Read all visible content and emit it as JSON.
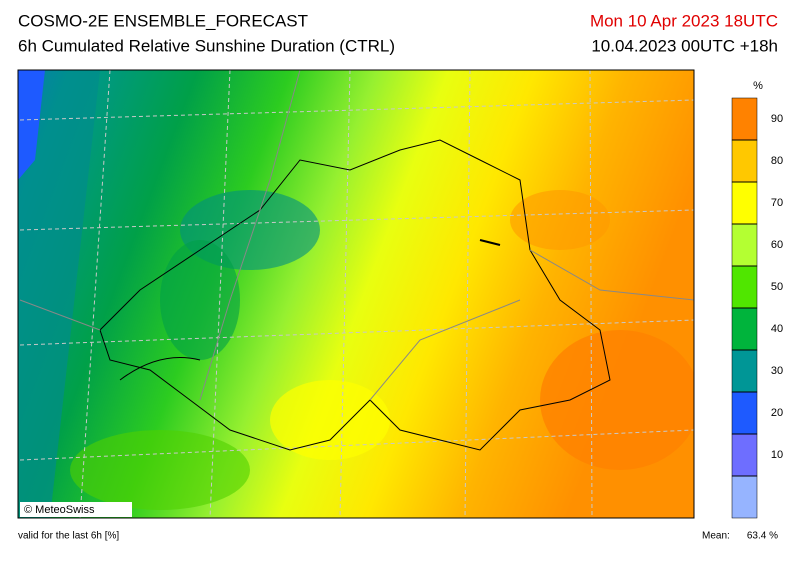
{
  "header": {
    "title": "COSMO-2E ENSEMBLE_FORECAST",
    "subtitle": "6h Cumulated Relative Sunshine Duration (CTRL)",
    "valid_time": "Mon 10 Apr 2023 18UTC",
    "run_time": "10.04.2023 00UTC +18h"
  },
  "legend": {
    "unit": "%",
    "range": [
      0,
      100
    ],
    "ticks": [
      10,
      20,
      30,
      40,
      50,
      60,
      70,
      80,
      90
    ],
    "colors": [
      "#96b4ff",
      "#6e6eff",
      "#1e5aff",
      "#009696",
      "#00b43c",
      "#50e600",
      "#b4ff32",
      "#ffff00",
      "#ffc800",
      "#ff8200"
    ]
  },
  "map": {
    "credit": "© MeteoSwiss"
  },
  "footer": {
    "note": "valid for the last 6h [%]",
    "mean_label": "Mean:",
    "mean_value": "63.4 %"
  }
}
